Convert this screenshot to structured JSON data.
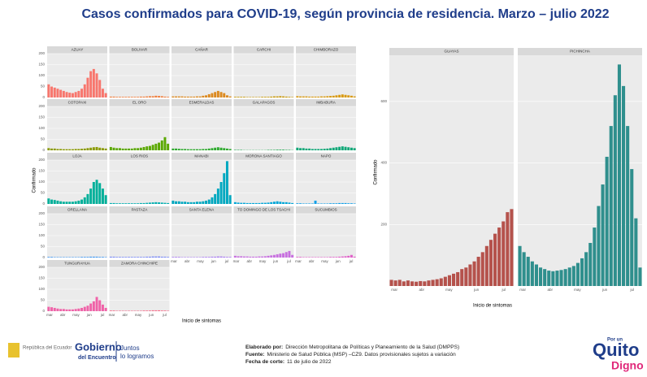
{
  "header": {
    "title": "Casos confirmados para COVID-19, según provincia de residencia. Marzo – julio 2022"
  },
  "chart_data": [
    {
      "type": "bar",
      "x_label": "Inicio de sintomas",
      "y_label": "Confirmado",
      "x_labels": [
        "mar",
        "abr",
        "may",
        "jun",
        "jul"
      ],
      "ylim": [
        0,
        200
      ],
      "yticks": [
        0,
        50,
        100,
        150,
        200
      ],
      "series": [
        {
          "name": "AZUAY",
          "color": "#f8766d",
          "values": [
            60,
            50,
            45,
            40,
            35,
            30,
            25,
            22,
            20,
            25,
            30,
            40,
            60,
            90,
            120,
            130,
            110,
            80,
            40,
            20
          ]
        },
        {
          "name": "BOLIVAR",
          "color": "#f07e3c",
          "values": [
            4,
            4,
            3,
            3,
            3,
            3,
            3,
            3,
            3,
            3,
            4,
            4,
            5,
            6,
            6,
            8,
            7,
            6,
            4,
            3
          ]
        },
        {
          "name": "CAÑAR",
          "color": "#dc8a20",
          "values": [
            5,
            5,
            5,
            5,
            4,
            4,
            4,
            4,
            5,
            5,
            8,
            10,
            15,
            20,
            25,
            30,
            25,
            20,
            10,
            5
          ]
        },
        {
          "name": "CARCHI",
          "color": "#c79500",
          "values": [
            3,
            3,
            3,
            3,
            2,
            2,
            2,
            2,
            2,
            3,
            3,
            3,
            4,
            5,
            5,
            6,
            5,
            4,
            3,
            2
          ]
        },
        {
          "name": "CHIMBORAZO",
          "color": "#d99a10",
          "values": [
            6,
            5,
            5,
            5,
            4,
            4,
            4,
            4,
            5,
            5,
            6,
            7,
            8,
            10,
            12,
            14,
            12,
            10,
            8,
            5
          ]
        },
        {
          "name": "COTOPAXI",
          "color": "#8a9a00",
          "values": [
            10,
            8,
            8,
            6,
            6,
            5,
            5,
            5,
            5,
            6,
            6,
            7,
            8,
            10,
            12,
            14,
            15,
            12,
            10,
            8
          ]
        },
        {
          "name": "EL ORO",
          "color": "#5aa800",
          "values": [
            15,
            12,
            10,
            10,
            8,
            8,
            8,
            8,
            10,
            10,
            12,
            15,
            18,
            20,
            25,
            30,
            35,
            45,
            60,
            30
          ]
        },
        {
          "name": "ESMERALDAS",
          "color": "#2eaa2e",
          "values": [
            8,
            8,
            7,
            6,
            6,
            5,
            5,
            5,
            5,
            5,
            6,
            6,
            8,
            10,
            12,
            14,
            12,
            10,
            8,
            6
          ]
        },
        {
          "name": "GALAPAGOS",
          "color": "#20a850",
          "values": [
            2,
            2,
            2,
            1,
            1,
            1,
            1,
            1,
            1,
            1,
            1,
            2,
            2,
            2,
            3,
            3,
            3,
            2,
            2,
            1
          ]
        },
        {
          "name": "IMBABURA",
          "color": "#10a878",
          "values": [
            12,
            10,
            10,
            8,
            8,
            6,
            6,
            6,
            6,
            7,
            8,
            10,
            12,
            14,
            16,
            18,
            16,
            14,
            12,
            10
          ]
        },
        {
          "name": "LOJA",
          "color": "#00b09a",
          "values": [
            25,
            20,
            18,
            15,
            12,
            10,
            10,
            10,
            10,
            12,
            15,
            20,
            30,
            45,
            70,
            100,
            110,
            95,
            70,
            40
          ]
        },
        {
          "name": "LOS RIOS",
          "color": "#00aeb0",
          "values": [
            4,
            4,
            3,
            3,
            3,
            3,
            3,
            3,
            3,
            3,
            4,
            4,
            5,
            6,
            7,
            8,
            7,
            6,
            5,
            4
          ]
        },
        {
          "name": "MANABI",
          "color": "#00a8c0",
          "values": [
            15,
            12,
            12,
            10,
            10,
            8,
            8,
            8,
            10,
            10,
            12,
            15,
            20,
            30,
            45,
            70,
            100,
            140,
            195,
            40
          ]
        },
        {
          "name": "MORONA SANTIAGO",
          "color": "#00a6d8",
          "values": [
            8,
            6,
            5,
            5,
            4,
            4,
            4,
            4,
            4,
            5,
            5,
            6,
            8,
            10,
            12,
            10,
            8,
            8,
            6,
            4
          ]
        },
        {
          "name": "NAPO",
          "color": "#10a0e8",
          "values": [
            3,
            3,
            2,
            2,
            2,
            2,
            15,
            2,
            2,
            2,
            2,
            3,
            3,
            3,
            4,
            4,
            4,
            3,
            3,
            2
          ]
        },
        {
          "name": "ORELLANA",
          "color": "#3d96f0",
          "values": [
            3,
            3,
            2,
            2,
            2,
            2,
            2,
            2,
            2,
            2,
            2,
            3,
            3,
            3,
            4,
            4,
            4,
            3,
            3,
            2
          ]
        },
        {
          "name": "PASTAZA",
          "color": "#7a8af5",
          "values": [
            4,
            4,
            3,
            3,
            3,
            3,
            3,
            3,
            3,
            3,
            3,
            3,
            4,
            4,
            5,
            5,
            5,
            4,
            4,
            3
          ]
        },
        {
          "name": "SANTA ELENA",
          "color": "#a97cf0",
          "values": [
            3,
            3,
            3,
            2,
            2,
            2,
            2,
            2,
            2,
            2,
            3,
            3,
            3,
            4,
            4,
            5,
            5,
            4,
            3,
            3
          ]
        },
        {
          "name": "TO DOMINGO DE LOS TSACHI",
          "color": "#c870e0",
          "values": [
            8,
            6,
            6,
            5,
            5,
            4,
            4,
            4,
            5,
            5,
            6,
            8,
            10,
            12,
            15,
            18,
            20,
            25,
            30,
            12
          ]
        },
        {
          "name": "SUCUMBIOS",
          "color": "#e060c8",
          "values": [
            3,
            3,
            2,
            2,
            2,
            2,
            2,
            2,
            2,
            2,
            2,
            3,
            3,
            3,
            4,
            5,
            6,
            8,
            12,
            4
          ]
        },
        {
          "name": "TUNGURAHUA",
          "color": "#f062a8",
          "values": [
            20,
            18,
            15,
            12,
            10,
            10,
            8,
            8,
            8,
            10,
            12,
            15,
            20,
            25,
            35,
            45,
            65,
            50,
            30,
            15
          ]
        },
        {
          "name": "ZAMORA CHINCHIPE",
          "color": "#f86a88",
          "values": [
            3,
            3,
            2,
            2,
            2,
            2,
            2,
            2,
            2,
            2,
            2,
            3,
            3,
            3,
            4,
            4,
            4,
            3,
            3,
            2
          ]
        }
      ]
    },
    {
      "type": "bar",
      "x_label": "Inicio de sintomas",
      "y_label": "Confirmado",
      "x_labels": [
        "mar",
        "abr",
        "may",
        "jun",
        "jul"
      ],
      "ylim": [
        0,
        750
      ],
      "yticks": [
        200,
        400,
        600
      ],
      "series": [
        {
          "name": "GUAYAS",
          "color": "#b5524c",
          "values": [
            20,
            18,
            20,
            15,
            18,
            15,
            14,
            16,
            15,
            18,
            20,
            22,
            25,
            30,
            35,
            40,
            45,
            55,
            60,
            70,
            80,
            95,
            110,
            130,
            150,
            170,
            190,
            210,
            240,
            250
          ]
        },
        {
          "name": "PICHINCHA",
          "color": "#2f8f8d",
          "values": [
            130,
            110,
            95,
            80,
            70,
            60,
            55,
            50,
            48,
            50,
            52,
            55,
            60,
            65,
            75,
            90,
            110,
            140,
            190,
            260,
            330,
            420,
            520,
            620,
            720,
            650,
            520,
            380,
            220,
            60
          ]
        }
      ]
    }
  ],
  "footer": {
    "lines": [
      {
        "label": "Elaborado por:",
        "text": "Dirección Metropolitana de Políticas y Planeamiento de la Salud (DMPPS)"
      },
      {
        "label": "Fuente:",
        "text": "Ministerio de Salud Pública (MSP) –CZ9. Datos provisionales sujetos a variación"
      },
      {
        "label": "Fecha de corte:",
        "text": "11 de julio de 2022"
      }
    ],
    "logos": {
      "republic": "República del Ecuador",
      "gobierno": "Gobierno",
      "encuentro": "del Encuentro",
      "juntos": "Juntos",
      "logramos": "lo logramos",
      "porun": "Por un",
      "quito": "Quito",
      "digno": "Digno"
    }
  }
}
